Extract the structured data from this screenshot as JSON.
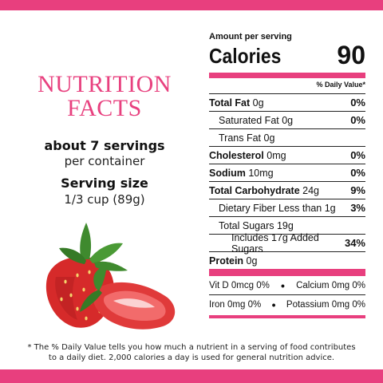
{
  "left": {
    "title_line1": "NUTRITION",
    "title_line2": "FACTS",
    "servings": "about 7 servings",
    "per_container": "per container",
    "serving_size_label": "Serving size",
    "serving_size_value": "1/3 cup (89g)"
  },
  "panel": {
    "amount_per_serving": "Amount per serving",
    "calories_label": "Calories",
    "calories_value": "90",
    "daily_value_header": "% Daily Value*",
    "rows": [
      {
        "label": "Total Fat",
        "amount": "0g",
        "pct": "0%"
      },
      {
        "label": "Saturated Fat",
        "amount": "0g",
        "pct": "0%"
      },
      {
        "label": "Trans Fat",
        "amount": "0g",
        "pct": ""
      },
      {
        "label": "Cholesterol",
        "amount": "0mg",
        "pct": "0%"
      },
      {
        "label": "Sodium",
        "amount": "10mg",
        "pct": "0%"
      },
      {
        "label": "Total Carbohydrate",
        "amount": "24g",
        "pct": "9%"
      },
      {
        "label": "Dietary Fiber Less than",
        "amount": "1g",
        "pct": "3%"
      },
      {
        "label": "Total Sugars",
        "amount": "19g",
        "pct": ""
      },
      {
        "label": "Includes 17g Added Sugars",
        "amount": "",
        "pct": "34%"
      },
      {
        "label": "Protein",
        "amount": "0g",
        "pct": ""
      }
    ],
    "minerals": [
      {
        "left": "Vit D 0mcg 0%",
        "right": "Calcium 0mg 0%"
      },
      {
        "left": "Iron 0mg 0%",
        "right": "Potassium 0mg 0%"
      }
    ],
    "bullet": "•"
  },
  "footnote_line1": "* The % Daily Value tells you how much a nutrient in a serving of food contributes",
  "footnote_line2": "to a daily diet. 2,000 calories a day is used for general nutrition advice.",
  "colors": {
    "accent": "#e83f7e",
    "berry": "#d62a2a",
    "leaf": "#3f8a2e"
  },
  "image": "strawberry-illustration"
}
